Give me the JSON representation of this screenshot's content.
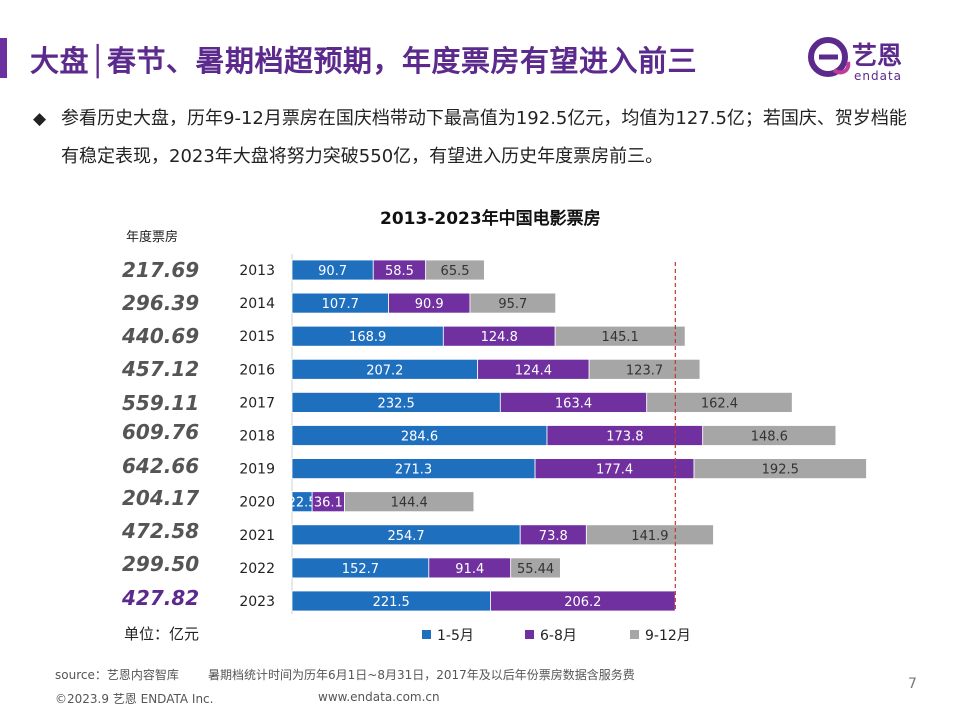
{
  "header": {
    "title": "大盘│春节、暑期档超预期，年度票房有望进入前三",
    "logo_cn": "艺恩",
    "logo_en": "endata"
  },
  "bullet": {
    "symbol": "◆",
    "text": "参看历史大盘，历年9-12月票房在国庆档带动下最高值为192.5亿元，均值为127.5亿；若国庆、贺岁档能有稳定表现，2023年大盘将努力突破550亿，有望进入历史年度票房前三。"
  },
  "annual_header": "年度票房",
  "unit_label": "单位：亿元",
  "totals": [
    "217.69",
    "296.39",
    "440.69",
    "457.12",
    "559.11",
    "609.76",
    "642.66",
    "204.17",
    "472.58",
    "299.50",
    "427.82"
  ],
  "chart_data": {
    "type": "bar",
    "orientation": "horizontal",
    "stacked": true,
    "title": "2013-2023年中国电影票房",
    "categories": [
      "2013",
      "2014",
      "2015",
      "2016",
      "2017",
      "2018",
      "2019",
      "2020",
      "2021",
      "2022",
      "2023"
    ],
    "series": [
      {
        "name": "1-5月",
        "color": "#1f6fbf",
        "values": [
          90.7,
          107.7,
          168.9,
          207.2,
          232.5,
          284.6,
          271.3,
          22.5,
          254.7,
          152.7,
          221.5
        ]
      },
      {
        "name": "6-8月",
        "color": "#7030a0",
        "values": [
          58.5,
          90.9,
          124.8,
          124.4,
          163.4,
          173.8,
          177.4,
          36.1,
          73.8,
          91.4,
          206.2
        ]
      },
      {
        "name": "9-12月",
        "color": "#a6a6a6",
        "values": [
          65.5,
          95.7,
          145.1,
          123.7,
          162.4,
          148.6,
          192.5,
          144.4,
          141.9,
          55.44,
          null
        ]
      }
    ],
    "labels": [
      [
        "90.7",
        "58.5",
        "65.5"
      ],
      [
        "107.7",
        "90.9",
        "95.7"
      ],
      [
        "168.9",
        "124.8",
        "145.1"
      ],
      [
        "207.2",
        "124.4",
        "123.7"
      ],
      [
        "232.5",
        "163.4",
        "162.4"
      ],
      [
        "284.6",
        "173.8",
        "148.6"
      ],
      [
        "271.3",
        "177.4",
        "192.5"
      ],
      [
        "22.5",
        "36.1",
        "144.4"
      ],
      [
        "254.7",
        "73.8",
        "141.9"
      ],
      [
        "152.7",
        "91.4",
        "55.44"
      ],
      [
        "221.5",
        "206.2",
        ""
      ]
    ],
    "reference_line": 427.82,
    "xlim": [
      0,
      700
    ],
    "legend": "bottom"
  },
  "footer": {
    "source": "source：艺恩内容智库",
    "note": "暑期档统计时间为历年6月1日~8月31日，2017年及以后年份票房数据含服务费",
    "copyright": "©2023.9 艺恩 ENDATA Inc.",
    "website": "www.endata.com.cn",
    "page": "7"
  }
}
